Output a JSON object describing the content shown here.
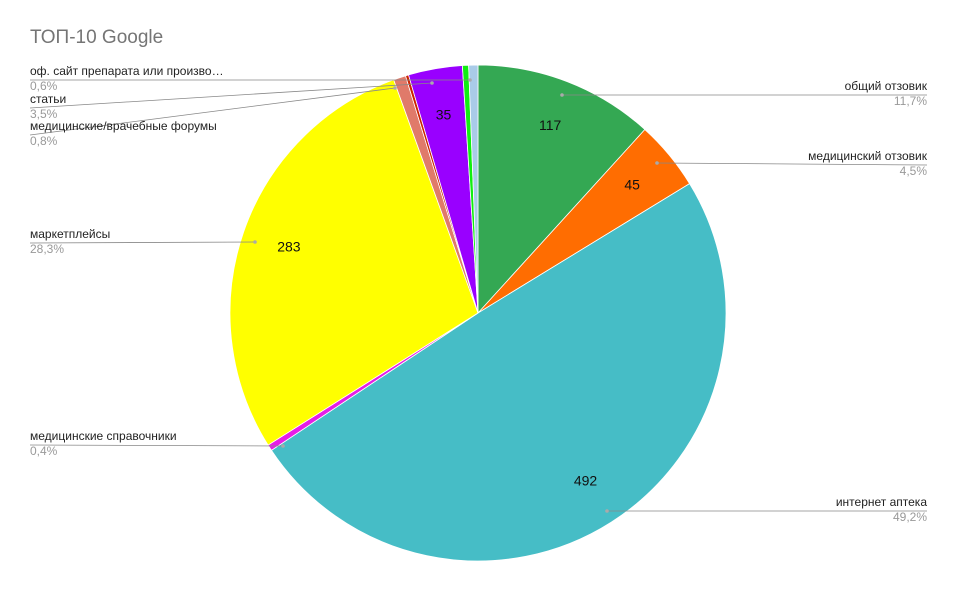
{
  "chart_data": {
    "type": "pie",
    "title": "ТОП-10 Google",
    "categories": [
      "общий отзовик",
      "медицинский отзовик",
      "интернет аптека",
      "медицинские справочники",
      "маркетплейсы",
      "медицинские/врачебные форумы",
      null,
      "статьи",
      null,
      "оф. сайт препарата или произво…"
    ],
    "values": [
      117,
      45,
      492,
      4,
      283,
      8,
      2,
      35,
      4,
      6
    ],
    "value_labels": [
      "117",
      "45",
      "492",
      null,
      "283",
      null,
      null,
      "35",
      null,
      null
    ],
    "percent_labels": [
      "11,7%",
      "4,5%",
      "49,2%",
      "0,4%",
      "28,3%",
      "0,8%",
      null,
      "3,5%",
      null,
      "0,6%"
    ],
    "colors": [
      "#34a853",
      "#ff6d01",
      "#46bdc6",
      "#e61ee6",
      "#ffff00",
      "#e07a6a",
      "#cc2200",
      "#9900ff",
      "#11ee11",
      "#a9cbe8"
    ]
  }
}
